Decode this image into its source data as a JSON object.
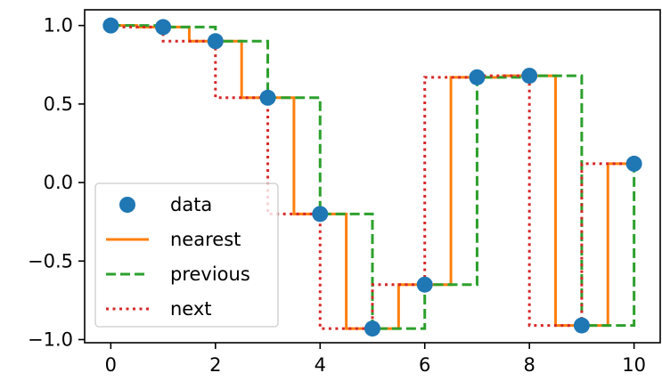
{
  "chart_data": {
    "type": "line",
    "x": [
      0,
      1,
      2,
      3,
      4,
      5,
      6,
      7,
      8,
      9,
      10
    ],
    "xlim": [
      -0.5,
      10.5
    ],
    "ylim": [
      -1.02,
      1.1
    ],
    "xticks": [
      0,
      2,
      4,
      6,
      8,
      10
    ],
    "xtick_labels": [
      "0",
      "2",
      "4",
      "6",
      "8",
      "10"
    ],
    "yticks": [
      1.0,
      0.5,
      0.0,
      -0.5,
      -1.0
    ],
    "ytick_labels": [
      "1.0",
      "0.5",
      "0.0",
      "−0.5",
      "−1.0"
    ],
    "grid": false,
    "legend_position": "lower-left",
    "series": [
      {
        "name": "data",
        "style": "markers",
        "color": "#1f77b4",
        "values": [
          1.0,
          0.99,
          0.9,
          0.54,
          -0.2,
          -0.93,
          -0.65,
          0.67,
          0.68,
          -0.91,
          0.12
        ]
      },
      {
        "name": "nearest",
        "style": "step-mid",
        "linestyle": "solid",
        "color": "#ff7f0e",
        "values": [
          1.0,
          0.99,
          0.9,
          0.54,
          -0.2,
          -0.93,
          -0.65,
          0.67,
          0.68,
          -0.91,
          0.12
        ]
      },
      {
        "name": "previous",
        "style": "step-post",
        "linestyle": "dashed",
        "color": "#2ca02c",
        "values": [
          1.0,
          0.99,
          0.9,
          0.54,
          -0.2,
          -0.93,
          -0.65,
          0.67,
          0.68,
          -0.91,
          0.12
        ]
      },
      {
        "name": "next",
        "style": "step-pre",
        "linestyle": "dotted",
        "color": "#d62728",
        "values": [
          1.0,
          0.99,
          0.9,
          0.54,
          -0.2,
          -0.93,
          -0.65,
          0.67,
          0.68,
          -0.91,
          0.12
        ]
      }
    ]
  }
}
